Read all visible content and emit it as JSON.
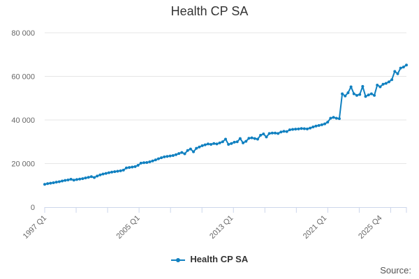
{
  "colors": {
    "series": "#1080c0",
    "grid": "#e6e6e6",
    "axis": "#ccd6eb",
    "tick_text": "#666666"
  },
  "source_label": "Source:",
  "chart_data": {
    "type": "line",
    "title": "Health CP SA",
    "xlabel": "",
    "ylabel": "",
    "ylim": [
      0,
      80000
    ],
    "y_ticks": [
      0,
      20000,
      40000,
      60000,
      80000
    ],
    "y_tick_labels": [
      "0",
      "20 000",
      "40 000",
      "60 000",
      "80 000"
    ],
    "x_tick_labels": [
      "1997 Q1",
      "2005 Q1",
      "2013 Q1",
      "2021 Q1",
      "2025 Q4"
    ],
    "x_tick_periods": [
      "1997 Q1",
      "2005 Q1",
      "2013 Q1",
      "2021 Q1",
      "2025 Q4"
    ],
    "grid": true,
    "legend_position": "bottom",
    "series": [
      {
        "name": "Health CP SA",
        "x_start": "1997 Q1",
        "frequency": "quarterly",
        "values": [
          10500,
          10800,
          11000,
          11200,
          11500,
          11700,
          12000,
          12300,
          12500,
          12800,
          12400,
          12700,
          12900,
          13100,
          13400,
          13700,
          14000,
          13600,
          14300,
          14800,
          15200,
          15500,
          15800,
          16100,
          16300,
          16500,
          16700,
          17000,
          18000,
          18200,
          18400,
          18600,
          19200,
          20200,
          20400,
          20500,
          20800,
          21200,
          21700,
          22200,
          22700,
          23100,
          23300,
          23500,
          23700,
          24100,
          24600,
          25100,
          24500,
          26000,
          26700,
          25400,
          27000,
          27600,
          28200,
          28600,
          29000,
          28800,
          29200,
          29000,
          29500,
          30000,
          31200,
          28800,
          29200,
          29800,
          30000,
          31500,
          29500,
          30200,
          31600,
          31800,
          31500,
          31200,
          33000,
          33600,
          32200,
          33800,
          34000,
          34000,
          33800,
          34500,
          34800,
          34700,
          35500,
          35700,
          35800,
          35900,
          36100,
          36000,
          35900,
          36300,
          36800,
          37200,
          37500,
          37800,
          38200,
          39000,
          40800,
          41200,
          40800,
          40600,
          52000,
          51000,
          52500,
          55200,
          52000,
          51300,
          51700,
          55400,
          50800,
          51500,
          52000,
          51300,
          56000,
          55200,
          56400,
          56800,
          57500,
          58500,
          62300,
          61200,
          63800,
          64300,
          65200
        ]
      }
    ]
  }
}
